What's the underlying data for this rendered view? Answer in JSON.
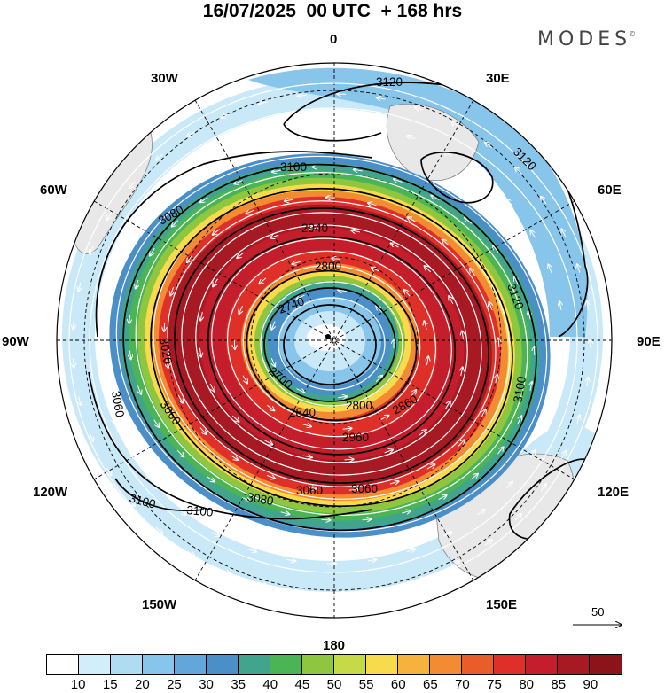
{
  "title": "16/07/2025  00 UTC  + 168 hrs",
  "brand": "MODES",
  "brand_mark": "©",
  "longitude_labels": {
    "top": "0",
    "bottom": "180",
    "left": "90W",
    "right": "90E",
    "w30": "30W",
    "e30": "30E",
    "w60": "60W",
    "e60": "60E",
    "w120": "120W",
    "e120": "120E",
    "w150": "150W",
    "e150": "150E"
  },
  "contour_labels": {
    "c3120a": "3120",
    "c3120b": "3120",
    "c3120c": "3120",
    "c3100a": "3100",
    "c3100b": "3100",
    "c3100c": "3100",
    "c3100d": "3100",
    "c3080a": "3080",
    "c3080b": "3080",
    "c3060a": "3060",
    "c3060b": "3060",
    "c3060c": "3060",
    "c3060d": "3060",
    "c3020": "3020",
    "c2940": "2940",
    "c2800a": "2800",
    "c2800b": "2800",
    "c2740": "2740",
    "c2700": "2700",
    "c2840": "2840",
    "c2860": "2860",
    "c2960": "2960"
  },
  "reference_vector": "50",
  "colorbar": {
    "ticks": [
      "10",
      "15",
      "20",
      "25",
      "30",
      "35",
      "40",
      "45",
      "50",
      "55",
      "60",
      "65",
      "70",
      "75",
      "80",
      "85",
      "90"
    ],
    "colors": [
      "#ffffff",
      "#d3eefb",
      "#afdcf3",
      "#87c5ea",
      "#62a6da",
      "#4a8fc7",
      "#41a48d",
      "#4bb455",
      "#8ec63f",
      "#c6d947",
      "#f8db4c",
      "#f7b23e",
      "#f28b32",
      "#ea5d2a",
      "#de2f29",
      "#c41e2c",
      "#a81a23",
      "#8a1419"
    ]
  }
}
